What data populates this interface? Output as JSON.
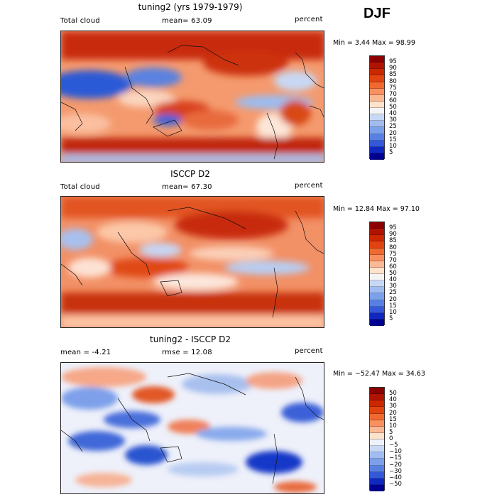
{
  "season": "DJF",
  "panels": [
    {
      "title": "tuning2 (yrs 1979-1979)",
      "left_label": "Total cloud",
      "center_label": "mean=  63.09",
      "right_label": "percent",
      "minmax": "Min =    3.44 Max =  98.99",
      "colorbar_labels": [
        "95",
        "90",
        "85",
        "80",
        "75",
        "70",
        "60",
        "50",
        "40",
        "30",
        "25",
        "20",
        "15",
        "10",
        "5"
      ],
      "colorbar_colors": [
        "#8b0000",
        "#b01400",
        "#cc2800",
        "#e04410",
        "#f06a30",
        "#f89060",
        "#fbb894",
        "#fde2cc",
        "#f4f4f4",
        "#c6d8f6",
        "#a0bcf0",
        "#7ca0ea",
        "#5880e4",
        "#3458d8",
        "#1028c0",
        "#000090"
      ]
    },
    {
      "title": "ISCCP D2",
      "left_label": "Total cloud",
      "center_label": "mean=  67.30",
      "right_label": "percent",
      "minmax": "Min =  12.84 Max =  97.10",
      "colorbar_labels": [
        "95",
        "90",
        "85",
        "80",
        "75",
        "70",
        "60",
        "50",
        "40",
        "30",
        "25",
        "20",
        "15",
        "10",
        "5"
      ],
      "colorbar_colors": [
        "#8b0000",
        "#b01400",
        "#cc2800",
        "#e04410",
        "#f06a30",
        "#f89060",
        "#fbb894",
        "#fde2cc",
        "#f4f4f4",
        "#c6d8f6",
        "#a0bcf0",
        "#7ca0ea",
        "#5880e4",
        "#3458d8",
        "#1028c0",
        "#000090"
      ]
    },
    {
      "title": "tuning2 - ISCCP D2",
      "left_label": "mean =   -4.21",
      "center_label": "rmse =   12.08",
      "right_label": "percent",
      "minmax": "Min = −52.47 Max =  34.63",
      "colorbar_labels": [
        "50",
        "40",
        "30",
        "20",
        "15",
        "10",
        "5",
        "0",
        "−5",
        "−10",
        "−15",
        "−20",
        "−30",
        "−40",
        "−50"
      ],
      "colorbar_colors": [
        "#8b0000",
        "#b01400",
        "#cc2800",
        "#e04410",
        "#f06a30",
        "#f89060",
        "#fbb894",
        "#fde2cc",
        "#eef2fb",
        "#c6d8f6",
        "#a0bcf0",
        "#7ca0ea",
        "#5880e4",
        "#3458d8",
        "#1028c0",
        "#000090"
      ]
    }
  ]
}
